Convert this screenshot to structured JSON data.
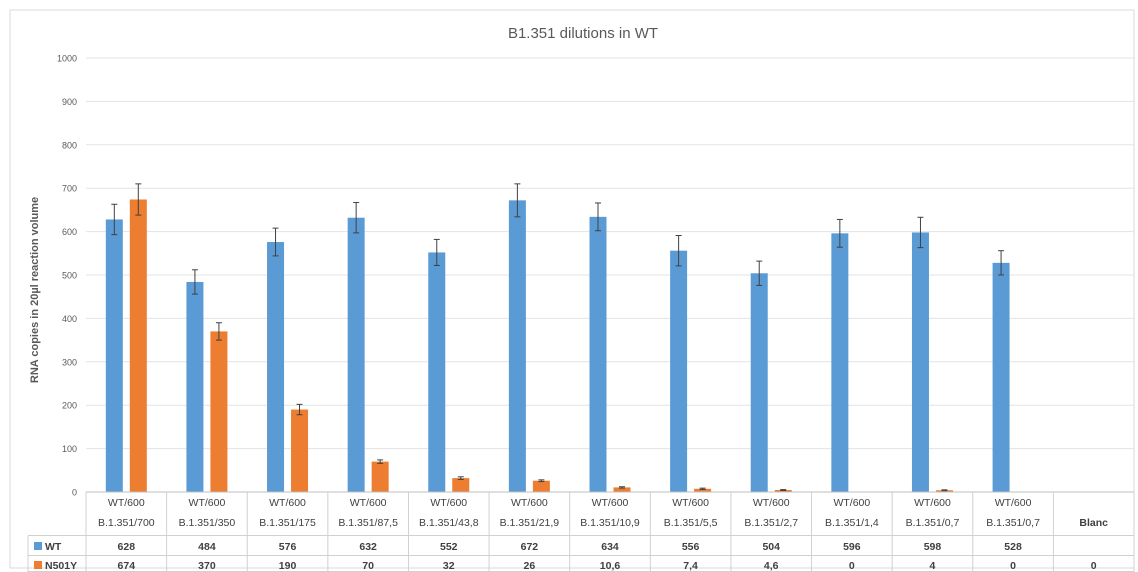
{
  "chart_data": {
    "type": "bar",
    "title": "B1.351 dilutions in WT",
    "ylabel": "RNA copies in 20µl reaction volume",
    "ylim": [
      0,
      1000
    ],
    "yticks": [
      0,
      100,
      200,
      300,
      400,
      500,
      600,
      700,
      800,
      900,
      1000
    ],
    "grid": true,
    "legend": "data-table",
    "categories": [
      [
        "WT/600",
        "B.1.351/700"
      ],
      [
        "WT/600",
        "B.1.351/350"
      ],
      [
        "WT/600",
        "B.1.351/175"
      ],
      [
        "WT/600",
        "B.1.351/87,5"
      ],
      [
        "WT/600",
        "B.1.351/43,8"
      ],
      [
        "WT/600",
        "B.1.351/21,9"
      ],
      [
        "WT/600",
        "B.1.351/10,9"
      ],
      [
        "WT/600",
        "B.1.351/5,5"
      ],
      [
        "WT/600",
        "B.1.351/2,7"
      ],
      [
        "WT/600",
        "B.1.351/1,4"
      ],
      [
        "WT/600",
        "B.1.351/0,7"
      ],
      [
        "WT/600",
        "B.1.351/0,7"
      ],
      [
        "",
        "Blanc"
      ]
    ],
    "series": [
      {
        "name": "WT",
        "color": "#5b9bd5",
        "values": [
          628,
          484,
          576,
          632,
          552,
          672,
          634,
          556,
          504,
          596,
          598,
          528,
          null
        ],
        "labels": [
          "628",
          "484",
          "576",
          "632",
          "552",
          "672",
          "634",
          "556",
          "504",
          "596",
          "598",
          "528",
          ""
        ],
        "errors": [
          35,
          28,
          32,
          35,
          30,
          38,
          32,
          35,
          28,
          32,
          35,
          28,
          null
        ]
      },
      {
        "name": "N501Y",
        "color": "#ed7d31",
        "values": [
          674,
          370,
          190,
          70,
          32,
          26,
          10.6,
          7.4,
          4.6,
          0,
          4,
          0,
          0
        ],
        "labels": [
          "674",
          "370",
          "190",
          "70",
          "32",
          "26",
          "10,6",
          "7,4",
          "4,6",
          "0",
          "4",
          "0",
          "0"
        ],
        "errors": [
          36,
          20,
          12,
          4,
          3,
          2,
          1.5,
          1.5,
          1,
          0,
          1,
          0,
          0
        ]
      }
    ]
  }
}
